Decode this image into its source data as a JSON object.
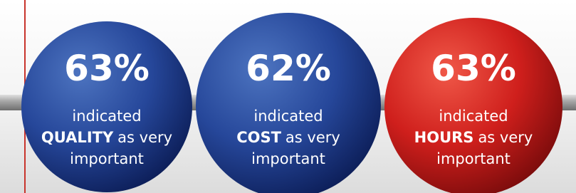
{
  "items": [
    {
      "stat": "63%",
      "line1": "indicated",
      "emphasis": "QUALITY",
      "rest": "as very",
      "line3": "important",
      "color": "blue"
    },
    {
      "stat": "62%",
      "line1": "indicated",
      "emphasis": "COST",
      "rest": "as very",
      "line3": "important",
      "color": "blue"
    },
    {
      "stat": "63%",
      "line1": "indicated",
      "emphasis": "HOURS",
      "rest": "as very",
      "line3": "important",
      "color": "red"
    }
  ]
}
